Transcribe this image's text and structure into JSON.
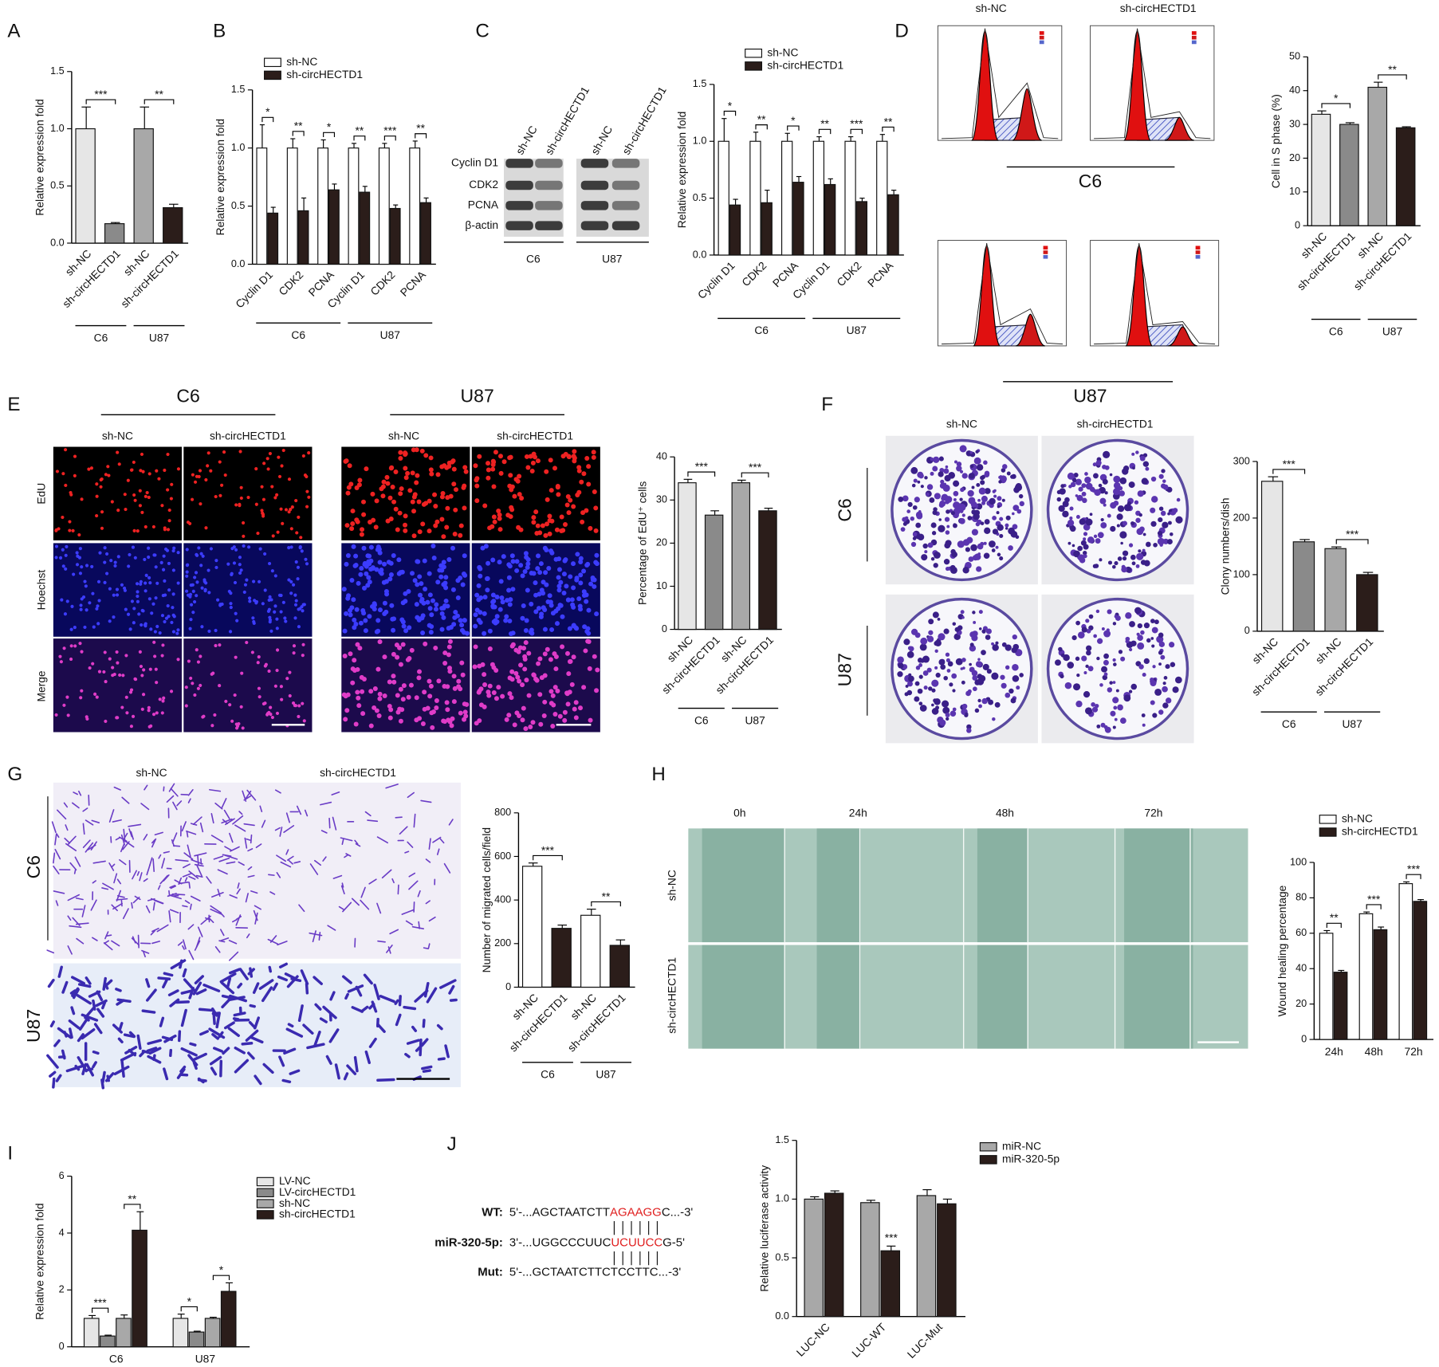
{
  "panel_labels": [
    "A",
    "B",
    "C",
    "D",
    "E",
    "F",
    "G",
    "H",
    "I",
    "J"
  ],
  "images": {
    "blot": {
      "lanes": [
        "sh-NC",
        "sh-circHECTD1",
        "sh-NC",
        "sh-circHECTD1"
      ],
      "rows": [
        "Cyclin D1",
        "CDK2",
        "PCNA",
        "β-actin"
      ],
      "groups": [
        "C6",
        "U87"
      ]
    },
    "flow": {
      "columns": [
        "sh-NC",
        "sh-circHECTD1"
      ],
      "groups": [
        "C6",
        "U87"
      ]
    },
    "edu": {
      "groups": [
        "C6",
        "U87"
      ],
      "columns": [
        "sh-NC",
        "sh-circHECTD1",
        "sh-NC",
        "sh-circHECTD1"
      ],
      "rows": [
        "EdU",
        "Hoechst",
        "Merge"
      ]
    },
    "colony": {
      "columns": [
        "sh-NC",
        "sh-circHECTD1"
      ],
      "rows": [
        "C6",
        "U87"
      ]
    },
    "transwell": {
      "columns": [
        "sh-NC",
        "sh-circHECTD1"
      ],
      "rows": [
        "C6",
        "U87"
      ]
    },
    "wound": {
      "columns": [
        "0h",
        "24h",
        "48h",
        "72h"
      ],
      "rows": [
        "sh-NC",
        "sh-circHECTD1"
      ]
    },
    "sequence": [
      {
        "label": "WT:",
        "parts": [
          "5'-...AGCTAATCTT",
          "AGAAGG",
          "C...-3'"
        ]
      },
      {
        "label": "miR-320-5p:",
        "parts": [
          "3'-...UGGCCCUUC",
          "UCUUCC",
          "G-5'"
        ]
      },
      {
        "label": "Mut:",
        "parts": [
          "5'-...GCTAATCTTCTCCTTC...-3'"
        ]
      }
    ]
  },
  "chart_data": [
    {
      "type": "bar",
      "ylabel": "Relative expression fold",
      "categories": [
        "sh-NC",
        "sh-circHECTD1",
        "sh-NC",
        "sh-circHECTD1"
      ],
      "groups": [
        "C6",
        "U87"
      ],
      "values": [
        1.0,
        0.17,
        1.0,
        0.31
      ],
      "errors": [
        0.19,
        0.01,
        0.19,
        0.03
      ],
      "colors": [
        "#e6e6e6",
        "#8a8a8a",
        "#a8a8a8",
        "#2b1d1a"
      ],
      "ylim": [
        0,
        1.5
      ],
      "yticks": [
        {
          "value": 0,
          "label": "0.0"
        },
        0.5,
        {
          "value": 1,
          "label": "1.0"
        },
        1.5
      ],
      "significance": [
        "***",
        "**"
      ]
    },
    {
      "type": "bar",
      "ylabel": "Relative expression fold",
      "categories": [
        "Cyclin D1",
        "CDK2",
        "PCNA",
        "Cyclin D1",
        "CDK2",
        "PCNA"
      ],
      "groups": [
        "C6",
        "U87"
      ],
      "series": [
        {
          "name": "sh-NC",
          "color": "#ffffff",
          "values": [
            1,
            1,
            1,
            1,
            1,
            1
          ],
          "errors": [
            0.2,
            0.08,
            0.07,
            0.04,
            0.04,
            0.06
          ]
        },
        {
          "name": "sh-circHECTD1",
          "color": "#2b1d1a",
          "values": [
            0.44,
            0.46,
            0.64,
            0.62,
            0.48,
            0.53
          ],
          "errors": [
            0.05,
            0.11,
            0.05,
            0.05,
            0.03,
            0.04
          ]
        }
      ],
      "ylim": [
        0,
        1.5
      ],
      "yticks": [
        {
          "value": 0,
          "label": "0.0"
        },
        0.5,
        {
          "value": 1,
          "label": "1.0"
        },
        1.5
      ],
      "significance": [
        "*",
        "**",
        "*",
        "**",
        "***",
        "**"
      ]
    },
    {
      "type": "bar",
      "ylabel": "Relative expression fold",
      "categories": [
        "Cyclin D1",
        "CDK2",
        "PCNA",
        "Cyclin D1",
        "CDK2",
        "PCNA"
      ],
      "groups": [
        "C6",
        "U87"
      ],
      "series": [
        {
          "name": "sh-NC",
          "color": "#ffffff",
          "values": [
            1,
            1,
            1,
            1,
            1,
            1
          ],
          "errors": [
            0.2,
            0.08,
            0.07,
            0.04,
            0.04,
            0.06
          ]
        },
        {
          "name": "sh-circHECTD1",
          "color": "#2b1d1a",
          "values": [
            0.44,
            0.46,
            0.64,
            0.62,
            0.47,
            0.53
          ],
          "errors": [
            0.05,
            0.11,
            0.05,
            0.05,
            0.03,
            0.04
          ]
        }
      ],
      "ylim": [
        0,
        1.5
      ],
      "yticks": [
        {
          "value": 0,
          "label": "0.0"
        },
        0.5,
        {
          "value": 1,
          "label": "1.0"
        },
        1.5
      ],
      "significance": [
        "*",
        "**",
        "*",
        "**",
        "***",
        "**"
      ]
    },
    {
      "type": "bar",
      "ylabel": "Cell in S phase (%)",
      "categories": [
        "sh-NC",
        "sh-circHECTD1",
        "sh-NC",
        "sh-circHECTD1"
      ],
      "groups": [
        "C6",
        "U87"
      ],
      "values": [
        33,
        30,
        41,
        29
      ],
      "errors": [
        1,
        0.5,
        1.5,
        0.3
      ],
      "colors": [
        "#e6e6e6",
        "#8a8a8a",
        "#a8a8a8",
        "#2b1d1a"
      ],
      "ylim": [
        0,
        50
      ],
      "yticks": [
        0,
        10,
        20,
        30,
        40,
        50
      ],
      "significance": [
        "*",
        "**"
      ]
    },
    {
      "type": "bar",
      "ylabel": "Percentage of EdU⁺ cells",
      "categories": [
        "sh-NC",
        "sh-circHECTD1",
        "sh-NC",
        "sh-circHECTD1"
      ],
      "groups": [
        "C6",
        "U87"
      ],
      "values": [
        34,
        26.5,
        34,
        27.5
      ],
      "errors": [
        0.8,
        1,
        0.6,
        0.6
      ],
      "colors": [
        "#e6e6e6",
        "#8a8a8a",
        "#a8a8a8",
        "#2b1d1a"
      ],
      "ylim": [
        0,
        40
      ],
      "yticks": [
        0,
        10,
        20,
        30,
        40
      ],
      "significance": [
        "***",
        "***"
      ]
    },
    {
      "type": "bar",
      "ylabel": "Clony numbers/dish",
      "categories": [
        "sh-NC",
        "sh-circHECTD1",
        "sh-NC",
        "sh-circHECTD1"
      ],
      "groups": [
        "C6",
        "U87"
      ],
      "values": [
        265,
        158,
        146,
        100
      ],
      "errors": [
        8,
        4,
        3,
        4
      ],
      "colors": [
        "#e6e6e6",
        "#8a8a8a",
        "#a8a8a8",
        "#2b1d1a"
      ],
      "ylim": [
        0,
        300
      ],
      "yticks": [
        0,
        100,
        200,
        300
      ],
      "significance": [
        "***",
        "***"
      ]
    },
    {
      "type": "bar",
      "ylabel": "Number of migrated cells/field",
      "categories": [
        "sh-NC",
        "sh-circHECTD1",
        "sh-NC",
        "sh-circHECTD1"
      ],
      "groups": [
        "C6",
        "U87"
      ],
      "values": [
        555,
        270,
        330,
        192
      ],
      "errors": [
        15,
        15,
        28,
        25
      ],
      "colors": [
        "#ffffff",
        "#2b1d1a",
        "#ffffff",
        "#2b1d1a"
      ],
      "ylim": [
        0,
        800
      ],
      "yticks": [
        0,
        200,
        400,
        600,
        800
      ],
      "significance": [
        "***",
        "**"
      ]
    },
    {
      "type": "bar",
      "ylabel": "Wound healing percentage",
      "categories": [
        "24h",
        "48h",
        "72h"
      ],
      "series": [
        {
          "name": "sh-NC",
          "color": "#ffffff",
          "values": [
            60,
            71,
            88
          ],
          "errors": [
            1.5,
            1,
            1
          ]
        },
        {
          "name": "sh-circHECTD1",
          "color": "#2b1d1a",
          "values": [
            38,
            62,
            78
          ],
          "errors": [
            1,
            1.5,
            1
          ]
        }
      ],
      "ylim": [
        0,
        100
      ],
      "yticks": [
        0,
        20,
        40,
        60,
        80,
        100
      ],
      "significance": [
        "**",
        "***",
        "***"
      ]
    },
    {
      "type": "bar",
      "ylabel": "Relative expression fold",
      "categories": [
        "C6",
        "U87"
      ],
      "series": [
        {
          "name": "LV-NC",
          "color": "#e6e6e6",
          "values": [
            1.0,
            1.0
          ],
          "errors": [
            0.1,
            0.15
          ]
        },
        {
          "name": "LV-circHECTD1",
          "color": "#8a8a8a",
          "values": [
            0.38,
            0.52
          ],
          "errors": [
            0.03,
            0.03
          ]
        },
        {
          "name": "sh-NC",
          "color": "#a8a8a8",
          "values": [
            1.0,
            1.0
          ],
          "errors": [
            0.12,
            0.04
          ]
        },
        {
          "name": "sh-circHECTD1",
          "color": "#2b1d1a",
          "values": [
            4.1,
            1.95
          ],
          "errors": [
            0.65,
            0.3
          ]
        }
      ],
      "ylim": [
        0,
        6
      ],
      "yticks": [
        0,
        2,
        4,
        6
      ],
      "significance": [
        "***",
        "**",
        "*",
        "*"
      ]
    },
    {
      "type": "bar",
      "ylabel": "Relative luciferase activity",
      "categories": [
        "LUC-NC",
        "LUC-WT",
        "LUC-Mut"
      ],
      "series": [
        {
          "name": "miR-NC",
          "color": "#a8a8a8",
          "values": [
            1.0,
            0.97,
            1.03
          ],
          "errors": [
            0.02,
            0.02,
            0.05
          ]
        },
        {
          "name": "miR-320-5p",
          "color": "#2b1d1a",
          "values": [
            1.05,
            0.56,
            0.96
          ],
          "errors": [
            0.02,
            0.04,
            0.04
          ]
        }
      ],
      "ylim": [
        0,
        1.5
      ],
      "yticks": [
        {
          "value": 0,
          "label": "0.0"
        },
        0.5,
        {
          "value": 1,
          "label": "1.0"
        },
        1.5
      ],
      "significance": [
        null,
        "***",
        null
      ],
      "brackets": false
    }
  ]
}
